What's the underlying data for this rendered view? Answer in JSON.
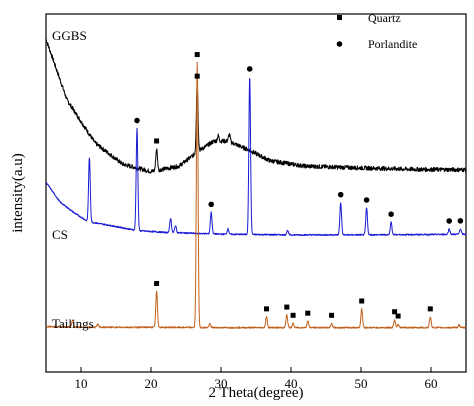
{
  "chart_data": {
    "type": "line",
    "xlabel": "2 Theta(degree)",
    "ylabel": "intensity(a.u)",
    "xlim": [
      5,
      65
    ],
    "x_ticks": [
      10,
      20,
      30,
      40,
      50,
      60
    ],
    "grid": false,
    "legend_position": "top-right",
    "legend": [
      {
        "label": "Quartz",
        "marker": "square"
      },
      {
        "label": "Porlandite",
        "marker": "circle"
      }
    ],
    "series": [
      {
        "name": "GGBS",
        "color": "#000000",
        "baseline": [
          [
            5,
            0.93
          ],
          [
            8,
            0.76
          ],
          [
            12,
            0.64
          ],
          [
            16,
            0.58
          ],
          [
            20,
            0.56
          ],
          [
            24,
            0.575
          ],
          [
            27,
            0.62
          ],
          [
            29,
            0.645
          ],
          [
            31,
            0.645
          ],
          [
            34,
            0.62
          ],
          [
            37,
            0.59
          ],
          [
            42,
            0.575
          ],
          [
            50,
            0.57
          ],
          [
            58,
            0.566
          ],
          [
            65,
            0.565
          ]
        ],
        "peaks": [
          [
            20.8,
            0.06
          ],
          [
            26.6,
            0.19
          ],
          [
            31.2,
            0.02
          ],
          [
            29.6,
            0.015
          ]
        ],
        "noise": 0.006
      },
      {
        "name": "CS",
        "color": "#1a1ad6",
        "baseline": [
          [
            5,
            0.53
          ],
          [
            7,
            0.475
          ],
          [
            9,
            0.445
          ],
          [
            11,
            0.42
          ],
          [
            14,
            0.41
          ],
          [
            18,
            0.395
          ],
          [
            22,
            0.39
          ],
          [
            30,
            0.385
          ],
          [
            40,
            0.383
          ],
          [
            50,
            0.383
          ],
          [
            60,
            0.384
          ],
          [
            65,
            0.385
          ]
        ],
        "peaks": [
          [
            11.2,
            0.18
          ],
          [
            18.0,
            0.285
          ],
          [
            22.8,
            0.04
          ],
          [
            23.5,
            0.02
          ],
          [
            28.6,
            0.06
          ],
          [
            31.0,
            0.015
          ],
          [
            34.1,
            0.44
          ],
          [
            39.5,
            0.012
          ],
          [
            47.1,
            0.09
          ],
          [
            50.8,
            0.075
          ],
          [
            54.3,
            0.035
          ],
          [
            62.6,
            0.015
          ],
          [
            64.2,
            0.015
          ]
        ],
        "noise": 0.002
      },
      {
        "name": "Tailings",
        "color": "#c0601c",
        "baseline": [
          [
            5,
            0.127
          ],
          [
            10,
            0.125
          ],
          [
            20,
            0.125
          ],
          [
            30,
            0.124
          ],
          [
            40,
            0.124
          ],
          [
            50,
            0.124
          ],
          [
            60,
            0.124
          ],
          [
            65,
            0.124
          ]
        ],
        "peaks": [
          [
            8.8,
            0.02
          ],
          [
            12.4,
            0.008
          ],
          [
            20.8,
            0.1
          ],
          [
            26.6,
            0.74
          ],
          [
            28.4,
            0.01
          ],
          [
            36.5,
            0.03
          ],
          [
            39.4,
            0.035
          ],
          [
            40.3,
            0.012
          ],
          [
            42.4,
            0.018
          ],
          [
            45.8,
            0.012
          ],
          [
            50.1,
            0.052
          ],
          [
            54.8,
            0.022
          ],
          [
            55.3,
            0.01
          ],
          [
            59.9,
            0.03
          ],
          [
            64.0,
            0.008
          ]
        ],
        "noise": 0.002
      }
    ],
    "markers": [
      {
        "type": "quartz",
        "series": "GGBS",
        "x": 20.8
      },
      {
        "type": "quartz",
        "series": "GGBS",
        "x": 26.6
      },
      {
        "type": "porlandite",
        "series": "CS",
        "x": 18.0
      },
      {
        "type": "porlandite",
        "series": "CS",
        "x": 28.6
      },
      {
        "type": "porlandite",
        "series": "CS",
        "x": 34.1
      },
      {
        "type": "porlandite",
        "series": "CS",
        "x": 47.1
      },
      {
        "type": "porlandite",
        "series": "CS",
        "x": 50.8
      },
      {
        "type": "porlandite",
        "series": "CS",
        "x": 54.3
      },
      {
        "type": "porlandite",
        "series": "CS",
        "x": 62.6
      },
      {
        "type": "porlandite",
        "series": "CS",
        "x": 64.2
      },
      {
        "type": "quartz",
        "series": "Tailings",
        "x": 20.8
      },
      {
        "type": "quartz",
        "series": "Tailings",
        "x": 26.6
      },
      {
        "type": "quartz",
        "series": "Tailings",
        "x": 36.5
      },
      {
        "type": "quartz",
        "series": "Tailings",
        "x": 39.4
      },
      {
        "type": "quartz",
        "series": "Tailings",
        "x": 40.3
      },
      {
        "type": "quartz",
        "series": "Tailings",
        "x": 42.4
      },
      {
        "type": "quartz",
        "series": "Tailings",
        "x": 45.8
      },
      {
        "type": "quartz",
        "series": "Tailings",
        "x": 50.1
      },
      {
        "type": "quartz",
        "series": "Tailings",
        "x": 54.8
      },
      {
        "type": "quartz",
        "series": "Tailings",
        "x": 55.3
      },
      {
        "type": "quartz",
        "series": "Tailings",
        "x": 59.9
      }
    ]
  }
}
